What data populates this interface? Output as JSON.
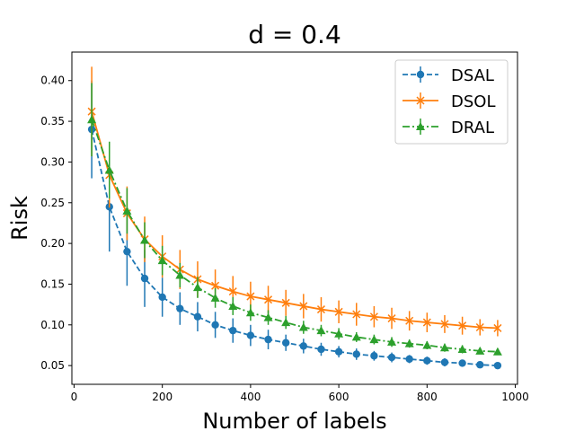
{
  "chart_data": {
    "type": "line",
    "title": "d = 0.4",
    "xlabel": "Number of labels",
    "ylabel": "Risk",
    "xlim": [
      -5,
      1005
    ],
    "ylim": [
      0.027,
      0.435
    ],
    "xticks": [
      0,
      200,
      400,
      600,
      800,
      1000
    ],
    "yticks": [
      0.05,
      0.1,
      0.15,
      0.2,
      0.25,
      0.3,
      0.35,
      0.4
    ],
    "ytick_labels": [
      "0.05",
      "0.10",
      "0.15",
      "0.20",
      "0.25",
      "0.30",
      "0.35",
      "0.40"
    ],
    "grid": false,
    "legend_position": "top-right",
    "x": [
      40,
      80,
      120,
      160,
      200,
      240,
      280,
      320,
      360,
      400,
      440,
      480,
      520,
      560,
      600,
      640,
      680,
      720,
      760,
      800,
      840,
      880,
      920,
      960
    ],
    "series": [
      {
        "name": "DSAL",
        "color": "#1f77b4",
        "marker": "circle",
        "line_style": "dashed",
        "values": [
          0.34,
          0.245,
          0.19,
          0.157,
          0.134,
          0.12,
          0.11,
          0.1,
          0.093,
          0.087,
          0.082,
          0.078,
          0.074,
          0.07,
          0.067,
          0.064,
          0.062,
          0.06,
          0.058,
          0.056,
          0.054,
          0.053,
          0.051,
          0.05
        ],
        "errors": [
          0.06,
          0.055,
          0.042,
          0.035,
          0.024,
          0.02,
          0.018,
          0.016,
          0.015,
          0.013,
          0.012,
          0.01,
          0.009,
          0.008,
          0.007,
          0.007,
          0.006,
          0.006,
          0.005,
          0.005,
          0.005,
          0.004,
          0.004,
          0.004
        ]
      },
      {
        "name": "DSOL",
        "color": "#ff7f0e",
        "marker": "x",
        "line_style": "solid",
        "values": [
          0.362,
          0.284,
          0.237,
          0.205,
          0.184,
          0.168,
          0.156,
          0.148,
          0.141,
          0.135,
          0.131,
          0.127,
          0.123,
          0.119,
          0.116,
          0.113,
          0.11,
          0.108,
          0.105,
          0.103,
          0.101,
          0.099,
          0.097,
          0.096
        ],
        "errors": [
          0.055,
          0.04,
          0.033,
          0.028,
          0.026,
          0.024,
          0.022,
          0.02,
          0.019,
          0.018,
          0.017,
          0.016,
          0.015,
          0.015,
          0.014,
          0.014,
          0.013,
          0.013,
          0.012,
          0.012,
          0.011,
          0.011,
          0.01,
          0.01
        ]
      },
      {
        "name": "DRAL",
        "color": "#2ca02c",
        "marker": "triangle",
        "line_style": "dashdot",
        "values": [
          0.352,
          0.29,
          0.24,
          0.204,
          0.179,
          0.161,
          0.146,
          0.133,
          0.123,
          0.115,
          0.109,
          0.103,
          0.097,
          0.093,
          0.089,
          0.085,
          0.082,
          0.079,
          0.077,
          0.075,
          0.072,
          0.07,
          0.068,
          0.067
        ],
        "errors": [
          0.045,
          0.035,
          0.028,
          0.022,
          0.018,
          0.015,
          0.013,
          0.012,
          0.011,
          0.01,
          0.009,
          0.008,
          0.008,
          0.007,
          0.007,
          0.006,
          0.006,
          0.006,
          0.005,
          0.005,
          0.005,
          0.005,
          0.004,
          0.004
        ]
      }
    ]
  }
}
